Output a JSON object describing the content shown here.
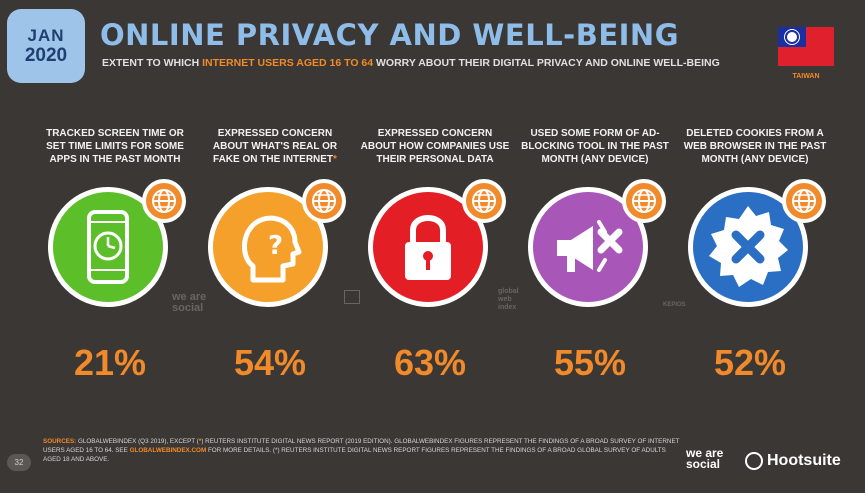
{
  "header": {
    "badge_month": "JAN",
    "badge_year": "2020",
    "title": "ONLINE PRIVACY AND WELL-BEING",
    "subtitle_pre": "EXTENT TO WHICH ",
    "subtitle_highlight": "INTERNET USERS AGED 16 TO 64",
    "subtitle_post": " WORRY ABOUT THEIR DIGITAL PRIVACY AND ONLINE WELL-BEING",
    "country": "TAIWAN"
  },
  "stats": [
    {
      "label": "TRACKED SCREEN TIME OR SET TIME LIMITS FOR SOME APPS IN THE PAST MONTH",
      "asterisk": "",
      "value": "21%",
      "color": "#5cbf2a",
      "icon": "smartphone-clock-icon"
    },
    {
      "label": "EXPRESSED CONCERN ABOUT WHAT'S REAL OR FAKE ON THE INTERNET",
      "asterisk": "*",
      "value": "54%",
      "color": "#f4a02b",
      "icon": "head-question-icon"
    },
    {
      "label": "EXPRESSED CONCERN ABOUT HOW COMPANIES USE THEIR PERSONAL DATA",
      "asterisk": "",
      "value": "63%",
      "color": "#e31e24",
      "icon": "padlock-icon"
    },
    {
      "label": "USED SOME FORM OF AD-BLOCKING TOOL IN THE PAST MONTH (ANY DEVICE)",
      "asterisk": "",
      "value": "55%",
      "color": "#a856b8",
      "icon": "megaphone-x-icon"
    },
    {
      "label": "DELETED COOKIES FROM A WEB BROWSER IN THE PAST MONTH (ANY DEVICE)",
      "asterisk": "",
      "value": "52%",
      "color": "#2b6fc4",
      "icon": "badge-x-icon"
    }
  ],
  "watermarks": {
    "we_are_social": "we are social",
    "gwi": "global web index",
    "kepios": "KEPIOS"
  },
  "footer": {
    "page_number": "32",
    "sources_label": "SOURCES:",
    "sources_text_1": " GLOBALWEBINDEX (Q3 2019), EXCEPT (",
    "sources_ast": "*",
    "sources_text_2": ") REUTERS INSTITUTE DIGITAL NEWS REPORT (2019 EDITION). GLOBALWEBINDEX FIGURES REPRESENT THE FINDINGS OF A BROAD SURVEY OF INTERNET USERS AGED 16 TO 64. SEE ",
    "sources_link": "GLOBALWEBINDEX.COM",
    "sources_text_3": " FOR MORE DETAILS. (*) REUTERS INSTITUTE DIGITAL NEWS REPORT FIGURES REPRESENT THE FINDINGS OF A BROAD GLOBAL SURVEY OF ADULTS AGED 18 AND ABOVE.",
    "logo_was": "we are social",
    "logo_hootsuite": "Hootsuite"
  }
}
